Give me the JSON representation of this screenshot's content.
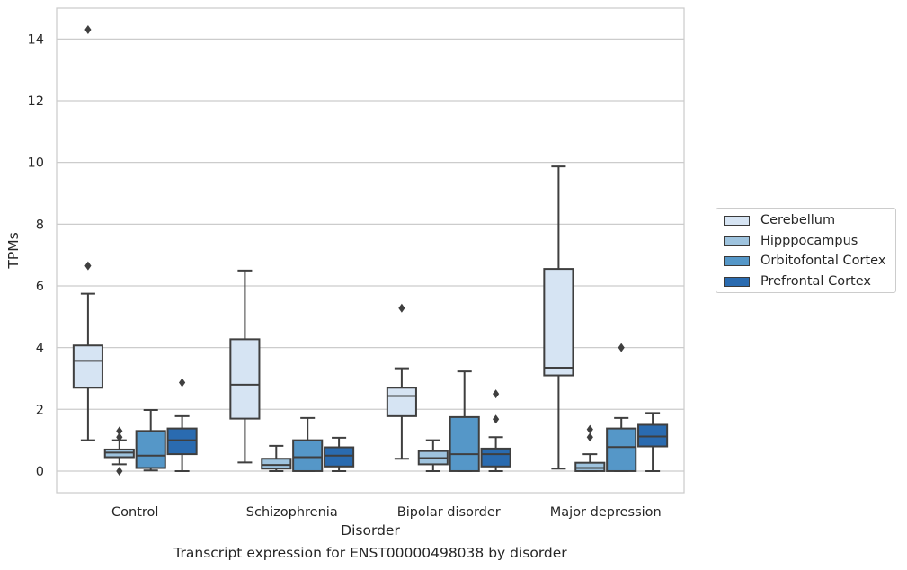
{
  "chart_data": {
    "type": "box",
    "title": "",
    "caption": "Transcript expression for ENST00000498038 by disorder",
    "xlabel": "Disorder",
    "ylabel": "TPMs",
    "ylim": [
      -0.7,
      15
    ],
    "yticks": [
      0,
      2,
      4,
      6,
      8,
      10,
      12,
      14
    ],
    "grid": true,
    "legend_position": "right",
    "categories": [
      "Control",
      "Schizophrenia",
      "Bipolar disorder",
      "Major depression"
    ],
    "series": [
      {
        "name": "Cerebellum",
        "color": "#d6e4f3",
        "boxes": [
          {
            "whisker_low": 1.0,
            "q1": 2.7,
            "median": 3.57,
            "q3": 4.07,
            "whisker_high": 5.75,
            "outliers": [
              6.65,
              14.3
            ]
          },
          {
            "whisker_low": 0.28,
            "q1": 1.7,
            "median": 2.8,
            "q3": 4.27,
            "whisker_high": 6.5,
            "outliers": []
          },
          {
            "whisker_low": 0.4,
            "q1": 1.78,
            "median": 2.43,
            "q3": 2.7,
            "whisker_high": 3.33,
            "outliers": [
              5.28
            ]
          },
          {
            "whisker_low": 0.08,
            "q1": 3.1,
            "median": 3.35,
            "q3": 6.55,
            "whisker_high": 9.87,
            "outliers": []
          }
        ]
      },
      {
        "name": "Hipppocampus",
        "color": "#9ec3de",
        "boxes": [
          {
            "whisker_low": 0.22,
            "q1": 0.45,
            "median": 0.6,
            "q3": 0.7,
            "whisker_high": 1.0,
            "outliers": [
              0.0,
              1.1,
              1.3
            ]
          },
          {
            "whisker_low": 0.0,
            "q1": 0.08,
            "median": 0.2,
            "q3": 0.4,
            "whisker_high": 0.82,
            "outliers": []
          },
          {
            "whisker_low": 0.0,
            "q1": 0.22,
            "median": 0.42,
            "q3": 0.65,
            "whisker_high": 1.0,
            "outliers": []
          },
          {
            "whisker_low": 0.0,
            "q1": 0.0,
            "median": 0.1,
            "q3": 0.27,
            "whisker_high": 0.55,
            "outliers": [
              1.1,
              1.35
            ]
          }
        ]
      },
      {
        "name": "Orbitofontal Cortex",
        "color": "#5597c8",
        "boxes": [
          {
            "whisker_low": 0.02,
            "q1": 0.1,
            "median": 0.5,
            "q3": 1.3,
            "whisker_high": 1.98,
            "outliers": []
          },
          {
            "whisker_low": 0.0,
            "q1": 0.0,
            "median": 0.45,
            "q3": 1.0,
            "whisker_high": 1.72,
            "outliers": []
          },
          {
            "whisker_low": 0.0,
            "q1": 0.0,
            "median": 0.55,
            "q3": 1.75,
            "whisker_high": 3.23,
            "outliers": []
          },
          {
            "whisker_low": 0.0,
            "q1": 0.0,
            "median": 0.78,
            "q3": 1.38,
            "whisker_high": 1.72,
            "outliers": [
              4.0
            ]
          }
        ]
      },
      {
        "name": "Prefrontal Cortex",
        "color": "#2a6bb0",
        "boxes": [
          {
            "whisker_low": 0.0,
            "q1": 0.55,
            "median": 1.0,
            "q3": 1.38,
            "whisker_high": 1.78,
            "outliers": [
              2.87
            ]
          },
          {
            "whisker_low": 0.0,
            "q1": 0.15,
            "median": 0.5,
            "q3": 0.77,
            "whisker_high": 1.08,
            "outliers": []
          },
          {
            "whisker_low": 0.0,
            "q1": 0.15,
            "median": 0.55,
            "q3": 0.73,
            "whisker_high": 1.1,
            "outliers": [
              1.68,
              2.5
            ]
          },
          {
            "whisker_low": 0.0,
            "q1": 0.8,
            "median": 1.12,
            "q3": 1.5,
            "whisker_high": 1.88,
            "outliers": []
          }
        ]
      }
    ]
  }
}
